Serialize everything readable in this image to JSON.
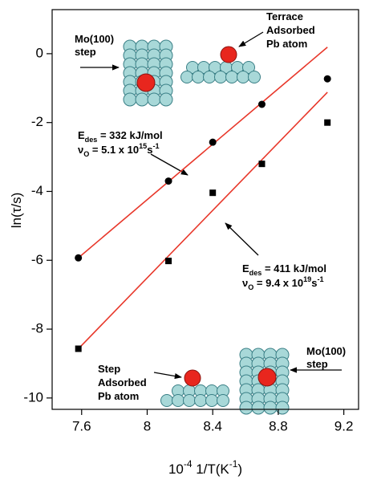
{
  "chart_data": {
    "type": "scatter",
    "x_label": [
      {
        "t": "10"
      },
      {
        "sup": "-4"
      },
      {
        "t": " 1/T(K"
      },
      {
        "sup": "-1"
      },
      {
        "t": ")"
      }
    ],
    "y_label": [
      {
        "t": "ln(τ/s)"
      }
    ],
    "xlim": [
      7.42,
      9.29
    ],
    "ylim": [
      -10.33,
      1.28
    ],
    "xticks": [
      7.6,
      8.0,
      8.4,
      8.8,
      9.2
    ],
    "yticks": [
      -10,
      -8,
      -6,
      -4,
      -2,
      0
    ],
    "series": [
      {
        "style": "marker",
        "marker": "circle",
        "color": "#000000",
        "x": [
          7.58,
          8.13,
          8.4,
          8.7,
          9.1
        ],
        "values": [
          -5.93,
          -3.7,
          -2.57,
          -1.47,
          -0.73
        ]
      },
      {
        "style": "marker",
        "marker": "square",
        "color": "#000000",
        "x": [
          7.58,
          8.13,
          8.4,
          8.7,
          9.1
        ],
        "values": [
          -8.57,
          -6.02,
          -4.04,
          -3.2,
          -2.0
        ]
      },
      {
        "style": "line",
        "color": "#e8372a",
        "x": [
          7.58,
          9.1
        ],
        "values": [
          -5.93,
          0.19
        ]
      },
      {
        "style": "line",
        "color": "#e8372a",
        "x": [
          7.58,
          9.1
        ],
        "values": [
          -8.57,
          -1.12
        ]
      }
    ],
    "annotations": [
      {
        "lines": [
          [
            {
              "t": "Mo(100)"
            }
          ],
          [
            {
              "t": "step"
            }
          ]
        ]
      },
      {
        "lines": [
          [
            {
              "t": "Terrace"
            }
          ],
          [
            {
              "t": "Adsorbed"
            }
          ],
          [
            {
              "t": "Pb atom"
            }
          ]
        ]
      },
      {
        "lines": [
          [
            {
              "t": "E"
            },
            {
              "sub": "des"
            },
            {
              "t": " = 332 kJ/mol"
            }
          ],
          [
            {
              "t": "ν"
            },
            {
              "sub": "O"
            },
            {
              "t": " = 5.1 x 10"
            },
            {
              "sup": "15"
            },
            {
              "t": "s"
            },
            {
              "sup": "-1"
            }
          ]
        ]
      },
      {
        "lines": [
          [
            {
              "t": "E"
            },
            {
              "sub": "des"
            },
            {
              "t": " = 411 kJ/mol"
            }
          ],
          [
            {
              "t": "ν"
            },
            {
              "sub": "O"
            },
            {
              "t": " = 9.4 x 10"
            },
            {
              "sup": "19"
            },
            {
              "t": "s"
            },
            {
              "sup": "-1"
            }
          ]
        ]
      },
      {
        "lines": [
          [
            {
              "t": "Step"
            }
          ],
          [
            {
              "t": "Adsorbed"
            }
          ],
          [
            {
              "t": "Pb atom"
            }
          ]
        ]
      },
      {
        "lines": [
          [
            {
              "t": "Mo(100)"
            }
          ],
          [
            {
              "t": "step"
            }
          ]
        ]
      }
    ]
  }
}
